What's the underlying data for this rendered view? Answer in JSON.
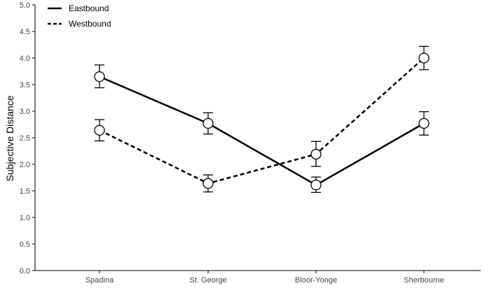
{
  "chart_data": {
    "type": "line",
    "categories": [
      "Spadina",
      "St. George",
      "Bloor-Yonge",
      "Sherbourne"
    ],
    "xlabel": "",
    "ylabel": "Subjective Distance",
    "ylim": [
      0,
      5
    ],
    "yticks": [
      "0.0",
      "0.5",
      "1.0",
      "1.5",
      "2.0",
      "2.5",
      "3.0",
      "3.5",
      "4.0",
      "4.5",
      "5.0"
    ],
    "grid": false,
    "legend_position": "top-left",
    "series": [
      {
        "name": "Eastbound",
        "line_style": "solid",
        "color": "#000000",
        "values": [
          3.65,
          2.77,
          1.61,
          2.77
        ],
        "error_low": [
          3.44,
          2.57,
          1.47,
          2.55
        ],
        "error_high": [
          3.87,
          2.97,
          1.76,
          2.99
        ]
      },
      {
        "name": "Westbound",
        "line_style": "dashed",
        "color": "#000000",
        "values": [
          2.64,
          1.64,
          2.19,
          4.0
        ],
        "error_low": [
          2.44,
          1.48,
          1.96,
          3.78
        ],
        "error_high": [
          2.84,
          1.8,
          2.43,
          4.22
        ]
      }
    ]
  }
}
